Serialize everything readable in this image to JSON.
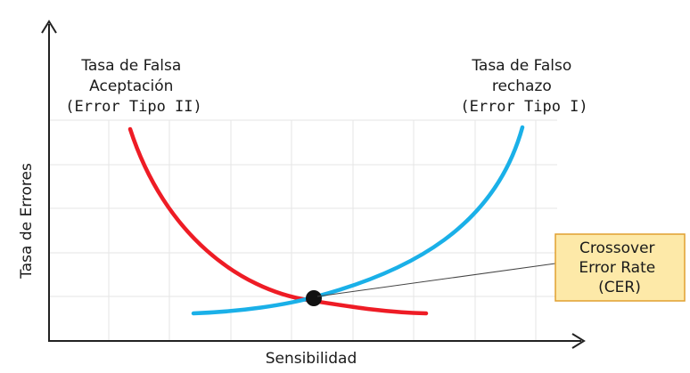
{
  "chart_data": {
    "type": "line",
    "title": "",
    "xlabel": "Sensibilidad",
    "ylabel": "Tasa de Errores",
    "grid": true,
    "series": [
      {
        "name": "Tasa de Falsa Aceptación (Error Tipo II)",
        "label_lines": [
          "Tasa de Falsa",
          "Aceptación",
          "(Error Tipo II)"
        ],
        "color": "#ee1c25"
      },
      {
        "name": "Tasa de Falso rechazo (Error Tipo I)",
        "label_lines": [
          "Tasa de Falso",
          "rechazo",
          "(Error Tipo I)"
        ],
        "color": "#1ab0e8"
      }
    ],
    "annotation": {
      "text_lines": [
        "Crossover",
        "Error Rate",
        "(CER)"
      ],
      "fill": "#fde9a8",
      "border": "#e0a030"
    }
  }
}
